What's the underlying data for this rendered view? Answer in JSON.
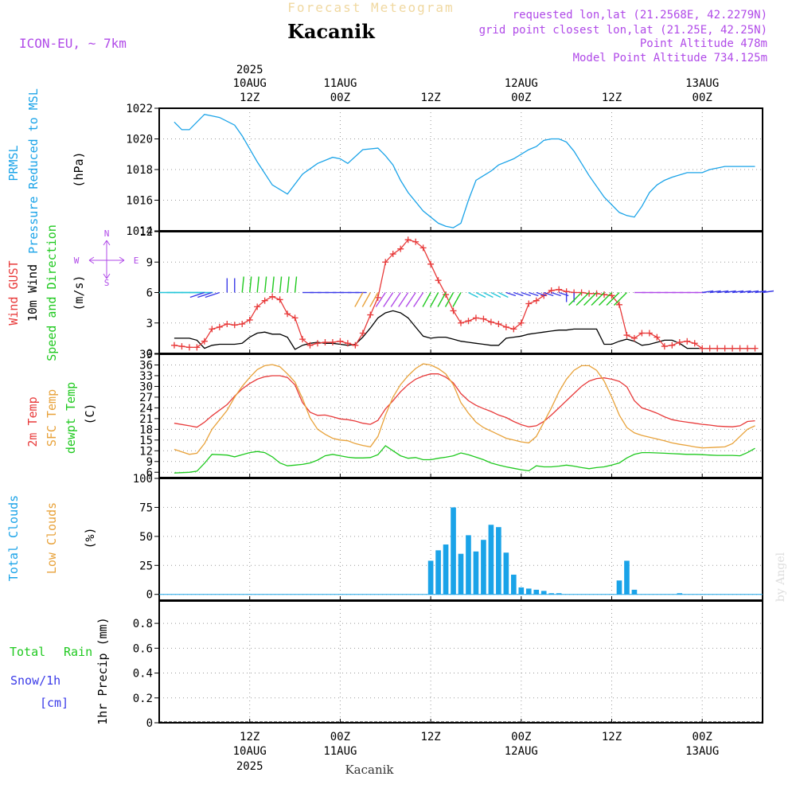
{
  "header": {
    "app_title": "Forecast Meteogram",
    "location": "Kacanik",
    "model": "ICON-EU, ~ 7km",
    "requested": "requested lon,lat (21.2568E, 42.2279N)",
    "gridpoint": "grid point closest lon,lat (21.25E, 42.25N)",
    "point_alt": "Point Altitude 478m",
    "model_alt": "Model Point Altitude 734.125m",
    "footer_location": "Kacanik",
    "watermark": "by Angel"
  },
  "time_axis": {
    "top_year": "2025",
    "ticks": [
      {
        "time": "12Z",
        "date": "10AUG",
        "year": "2025",
        "hour": 12
      },
      {
        "time": "00Z",
        "date": "11AUG",
        "year": "",
        "hour": 24
      },
      {
        "time": "12Z",
        "date": "",
        "year": "",
        "hour": 36
      },
      {
        "time": "00Z",
        "date": "12AUG",
        "year": "",
        "hour": 48
      },
      {
        "time": "12Z",
        "date": "",
        "year": "",
        "hour": 60
      },
      {
        "time": "00Z",
        "date": "13AUG",
        "year": "",
        "hour": 72
      }
    ],
    "bottom_ticks": [
      {
        "time": "12Z",
        "date": "10AUG",
        "year": "2025",
        "hour": 12
      },
      {
        "time": "00Z",
        "date": "11AUG",
        "year": "",
        "hour": 24
      },
      {
        "time": "12Z",
        "date": "",
        "year": "",
        "hour": 36
      },
      {
        "time": "00Z",
        "date": "12AUG",
        "year": "",
        "hour": 48
      },
      {
        "time": "12Z",
        "date": "",
        "year": "",
        "hour": 60
      },
      {
        "time": "00Z",
        "date": "13AUG",
        "year": "",
        "hour": 72
      }
    ]
  },
  "panels": {
    "pressure": {
      "l1": "PRMSL",
      "l2": "Pressure Reduced to MSL",
      "unit": "(hPa)",
      "color_l1": "#1aa3e8",
      "color_l2": "#1aa3e8"
    },
    "wind": {
      "l1": "Wind GUST",
      "l2": "10m Wind",
      "l3": "Speed and Direction",
      "unit": "(m/s)",
      "compass_w": "W",
      "compass_e": "E",
      "compass_n": "N",
      "compass_s": "S"
    },
    "temp": {
      "l1": "2m Temp",
      "l2": "SFC Temp",
      "l3": "dewpt Temp",
      "unit": "(C)"
    },
    "clouds": {
      "l1": "Total Clouds",
      "l2": "Low Clouds",
      "unit": "(%)"
    },
    "precip": {
      "l1": "Total",
      "l1b": "Rain",
      "l2": "Snow/1h",
      "l3": "[cm]",
      "unit": "1hr Precip (mm)"
    }
  },
  "chart_data": [
    {
      "type": "line",
      "title": "PRMSL Pressure Reduced to MSL",
      "ylabel": "(hPa)",
      "ylim": [
        1014,
        1022
      ],
      "yticks": [
        1014,
        1016,
        1018,
        1020,
        1022
      ],
      "x": [
        2,
        3,
        4,
        6,
        7,
        8,
        10,
        11,
        13,
        15,
        17,
        19,
        21,
        23,
        24,
        25,
        27,
        29,
        30,
        31,
        32,
        33,
        35,
        37,
        38,
        39,
        40,
        41,
        42,
        43,
        44,
        45,
        47,
        49,
        50,
        51,
        52,
        53,
        54,
        55,
        56,
        57,
        59,
        61,
        62,
        63,
        64,
        65,
        66,
        67,
        68,
        70,
        72,
        73,
        74,
        75,
        76,
        77,
        78,
        79
      ],
      "series": [
        {
          "name": "PRMSL",
          "color": "#1aa3e8",
          "values": [
            1021.1,
            1020.6,
            1020.6,
            1021.6,
            1021.5,
            1021.4,
            1020.9,
            1020.2,
            1018.5,
            1017.0,
            1016.4,
            1017.7,
            1018.4,
            1018.8,
            1018.7,
            1018.4,
            1019.3,
            1019.4,
            1018.9,
            1018.3,
            1017.3,
            1016.5,
            1015.3,
            1014.5,
            1014.3,
            1014.2,
            1014.5,
            1016.0,
            1017.3,
            1017.6,
            1017.9,
            1018.3,
            1018.7,
            1019.3,
            1019.5,
            1019.9,
            1020.0,
            1020.0,
            1019.8,
            1019.2,
            1018.4,
            1017.6,
            1016.2,
            1015.2,
            1015.0,
            1014.9,
            1015.6,
            1016.5,
            1017.0,
            1017.3,
            1017.5,
            1017.8,
            1017.8,
            1018.0,
            1018.1,
            1018.2,
            1018.2,
            1018.2,
            1018.2,
            1018.2
          ]
        }
      ]
    },
    {
      "type": "line",
      "title": "Wind GUST / 10m Wind Speed and Direction",
      "ylabel": "(m/s)",
      "ylim": [
        0,
        12
      ],
      "yticks": [
        0,
        3,
        6,
        9,
        12
      ],
      "x": [
        2,
        3,
        4,
        5,
        6,
        7,
        8,
        9,
        10,
        11,
        12,
        13,
        14,
        15,
        16,
        17,
        18,
        19,
        20,
        21,
        22,
        23,
        24,
        25,
        26,
        27,
        28,
        29,
        30,
        31,
        32,
        33,
        34,
        35,
        36,
        37,
        38,
        39,
        40,
        41,
        42,
        43,
        44,
        45,
        46,
        47,
        48,
        49,
        50,
        51,
        52,
        53,
        54,
        55,
        56,
        57,
        58,
        59,
        60,
        61,
        62,
        63,
        64,
        65,
        66,
        67,
        68,
        69,
        70,
        71,
        72,
        73,
        74,
        75,
        76,
        77,
        78,
        79
      ],
      "series": [
        {
          "name": "Wind GUST",
          "color": "#e83a3a",
          "values": [
            0.8,
            0.7,
            0.6,
            0.6,
            1.2,
            2.4,
            2.6,
            2.9,
            2.8,
            2.9,
            3.3,
            4.6,
            5.2,
            5.6,
            5.3,
            3.9,
            3.5,
            1.4,
            0.8,
            1.0,
            1.1,
            1.1,
            1.2,
            1.0,
            0.8,
            2.0,
            3.8,
            5.5,
            9.0,
            9.8,
            10.3,
            11.2,
            11.0,
            10.4,
            8.8,
            7.2,
            5.8,
            4.2,
            3.0,
            3.2,
            3.5,
            3.4,
            3.1,
            2.9,
            2.6,
            2.4,
            3.0,
            4.9,
            5.2,
            5.7,
            6.2,
            6.3,
            6.1,
            6.0,
            6.0,
            5.9,
            5.9,
            5.8,
            5.7,
            4.8,
            1.8,
            1.5,
            2.0,
            2.0,
            1.6,
            0.7,
            0.8,
            1.1,
            1.2,
            1.0,
            0.5,
            0.5,
            0.5,
            0.5,
            0.5,
            0.5,
            0.5,
            0.5
          ]
        },
        {
          "name": "10m Wind",
          "color": "#000000",
          "values": [
            1.5,
            1.5,
            1.5,
            1.3,
            0.5,
            0.8,
            0.9,
            0.9,
            0.9,
            1.0,
            1.6,
            2.0,
            2.1,
            1.9,
            1.9,
            1.6,
            0.4,
            0.8,
            1.0,
            1.1,
            1.0,
            1.0,
            0.9,
            0.8,
            0.9,
            1.6,
            2.5,
            3.5,
            4.0,
            4.2,
            4.0,
            3.5,
            2.6,
            1.7,
            1.5,
            1.6,
            1.6,
            1.4,
            1.2,
            1.1,
            1.0,
            0.9,
            0.8,
            0.8,
            1.5,
            1.6,
            1.7,
            1.9,
            2.0,
            2.1,
            2.2,
            2.3,
            2.3,
            2.4,
            2.4,
            2.4,
            2.4,
            0.9,
            0.9,
            1.2,
            1.4,
            1.2,
            0.8,
            0.9,
            1.1,
            1.3,
            1.3,
            1.0,
            0.5,
            0.5,
            0.5,
            0.5,
            0.5,
            0.5,
            0.5,
            0.5,
            0.5,
            0.5
          ]
        }
      ]
    },
    {
      "type": "line",
      "title": "2m Temp / SFC Temp / dewpt Temp",
      "ylabel": "(C)",
      "ylim": [
        4.5,
        39
      ],
      "yticks": [
        6,
        9,
        12,
        15,
        18,
        21,
        24,
        27,
        30,
        33,
        36,
        39
      ],
      "x": [
        2,
        4,
        5,
        6,
        7,
        9,
        10,
        11,
        12,
        13,
        14,
        15,
        16,
        17,
        18,
        19,
        20,
        21,
        22,
        23,
        24,
        25,
        26,
        27,
        28,
        29,
        30,
        31,
        32,
        33,
        34,
        35,
        36,
        37,
        38,
        39,
        40,
        41,
        42,
        43,
        44,
        45,
        46,
        47,
        48,
        49,
        50,
        51,
        52,
        53,
        54,
        55,
        56,
        57,
        58,
        59,
        60,
        61,
        62,
        63,
        64,
        65,
        66,
        67,
        68,
        69,
        70,
        71,
        72,
        73,
        74,
        75,
        76,
        77,
        78,
        79
      ],
      "series": [
        {
          "name": "2m Temp",
          "color": "#e83a3a",
          "values": [
            19.7,
            19.0,
            18.6,
            20.0,
            21.8,
            24.9,
            27.3,
            29.3,
            30.8,
            32.0,
            32.7,
            33.0,
            33.0,
            32.5,
            30.4,
            25.5,
            22.8,
            21.9,
            22.0,
            21.5,
            20.9,
            20.7,
            20.3,
            19.7,
            19.4,
            20.5,
            23.7,
            26.0,
            28.5,
            30.5,
            32.0,
            32.9,
            33.5,
            33.5,
            32.6,
            31.0,
            28.0,
            26.0,
            24.7,
            23.8,
            23.0,
            22.0,
            21.3,
            20.2,
            19.3,
            18.7,
            19.0,
            20.2,
            22.0,
            24.0,
            26.0,
            28.0,
            30.0,
            31.5,
            32.2,
            32.4,
            32.0,
            31.4,
            29.9,
            26.0,
            24.0,
            23.3,
            22.5,
            21.5,
            20.7,
            20.3,
            20.0,
            19.7,
            19.4,
            19.2,
            18.9,
            18.8,
            18.7,
            19.0,
            20.2,
            20.4
          ]
        },
        {
          "name": "SFC Temp",
          "color": "#e8a23a",
          "values": [
            12.4,
            11.0,
            11.3,
            14.0,
            18.0,
            23.3,
            27.0,
            30.0,
            32.5,
            34.7,
            35.8,
            36.1,
            35.5,
            33.5,
            31.2,
            26.6,
            21.2,
            18.0,
            16.6,
            15.5,
            15.0,
            14.8,
            14.0,
            13.5,
            13.1,
            16.0,
            22.0,
            27.0,
            30.5,
            33.0,
            35.0,
            36.3,
            36.0,
            35.0,
            33.5,
            30.5,
            25.5,
            22.5,
            20.0,
            18.5,
            17.5,
            16.5,
            15.5,
            15.0,
            14.5,
            14.2,
            16.0,
            20.0,
            24.0,
            28.5,
            32.0,
            34.5,
            35.8,
            35.8,
            34.5,
            31.5,
            27.0,
            22.0,
            18.5,
            17.0,
            16.3,
            15.8,
            15.3,
            14.8,
            14.2,
            13.8,
            13.5,
            13.1,
            12.8,
            12.9,
            13.0,
            13.1,
            14.0,
            16.0,
            18.0,
            19.0
          ]
        },
        {
          "name": "dewpt Temp",
          "color": "#1fc91f",
          "values": [
            5.8,
            6.0,
            6.3,
            8.5,
            11.0,
            10.8,
            10.3,
            10.9,
            11.5,
            11.8,
            11.5,
            10.3,
            8.6,
            7.8,
            8.0,
            8.2,
            8.6,
            9.4,
            10.6,
            11.0,
            10.6,
            10.2,
            10.0,
            10.0,
            10.1,
            10.9,
            13.4,
            12.0,
            10.6,
            9.9,
            10.1,
            9.5,
            9.5,
            9.9,
            10.2,
            10.6,
            11.4,
            10.9,
            10.2,
            9.5,
            8.6,
            8.0,
            7.5,
            7.1,
            6.7,
            6.4,
            7.8,
            7.5,
            7.5,
            7.7,
            8.0,
            7.7,
            7.3,
            7.0,
            7.3,
            7.5,
            8.0,
            8.6,
            10.0,
            11.0,
            11.5,
            11.5,
            11.4,
            11.3,
            11.2,
            11.1,
            11.0,
            11.0,
            10.9,
            10.8,
            10.7,
            10.7,
            10.7,
            10.6,
            11.5,
            12.7
          ]
        }
      ]
    },
    {
      "type": "bar",
      "title": "Total Clouds / Low Clouds",
      "ylabel": "(%)",
      "ylim": [
        -5,
        100
      ],
      "yticks": [
        0,
        25,
        50,
        75,
        100
      ],
      "x": [
        36,
        37,
        38,
        39,
        40,
        41,
        42,
        43,
        44,
        45,
        46,
        47,
        48,
        49,
        50,
        51,
        52,
        53,
        61,
        62,
        63,
        69
      ],
      "series": [
        {
          "name": "Total Clouds",
          "color": "#1aa3e8",
          "values": [
            29,
            38,
            43,
            75,
            35,
            51,
            37,
            47,
            60,
            58,
            36,
            17,
            6,
            5,
            4,
            3,
            1,
            1,
            12,
            29,
            4,
            1
          ]
        },
        {
          "name": "Low Clouds",
          "color": "#e8a23a",
          "values": [
            0,
            0,
            0,
            0,
            0,
            0,
            0,
            0,
            0,
            0,
            0,
            0,
            0,
            0,
            0,
            0,
            0,
            0,
            0,
            0,
            0,
            0
          ]
        }
      ]
    },
    {
      "type": "bar",
      "title": "1hr Precip",
      "ylabel": "1hr Precip (mm)",
      "ylim": [
        0,
        0.98
      ],
      "yticks": [
        0,
        0.2,
        0.4,
        0.6,
        0.8
      ],
      "series": [
        {
          "name": "Total Rain",
          "color": "#1fc91f",
          "values": []
        },
        {
          "name": "Snow/1h",
          "color": "#3a3ae8",
          "values": []
        }
      ]
    }
  ]
}
